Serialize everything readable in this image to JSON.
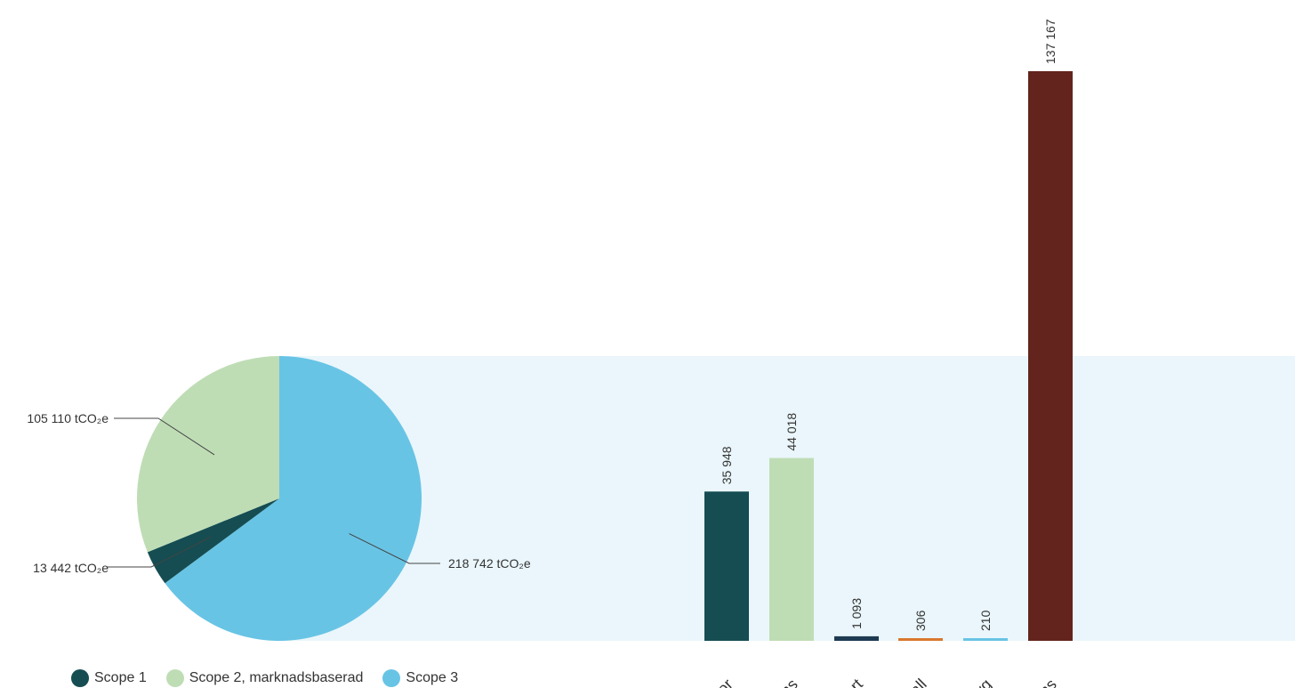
{
  "chart_data": [
    {
      "type": "pie",
      "unit": "tCO₂e",
      "slices": [
        {
          "name": "Scope 1",
          "value": 13442,
          "label": "13 442 tCO₂e",
          "color": "#154d52"
        },
        {
          "name": "Scope 2, marknadsbaserad",
          "value": 105110,
          "label": "105 110 tCO₂e",
          "color": "#bfddb5"
        },
        {
          "name": "Scope 3",
          "value": 218742,
          "label": "218 742 tCO₂e",
          "color": "#68c4e5"
        }
      ],
      "legend": "bottom-left"
    },
    {
      "type": "bar",
      "categories": [
        "…ror",
        "…ms",
        "…ort",
        "…fall",
        "Flyg",
        "…ms"
      ],
      "values": [
        35948,
        44018,
        1093,
        306,
        210,
        137167
      ],
      "value_labels": [
        "35 948",
        "44 018",
        "1 093",
        "306",
        "210",
        "137 167"
      ],
      "colors": [
        "#154d52",
        "#bfddb5",
        "#1e3a52",
        "#d9772e",
        "#68c4e5",
        "#62241c"
      ],
      "category_labels": [
        "ror",
        "ms",
        "ort",
        "fall",
        "Flyg",
        "ms"
      ]
    }
  ],
  "band_color": "#eaf6fb"
}
